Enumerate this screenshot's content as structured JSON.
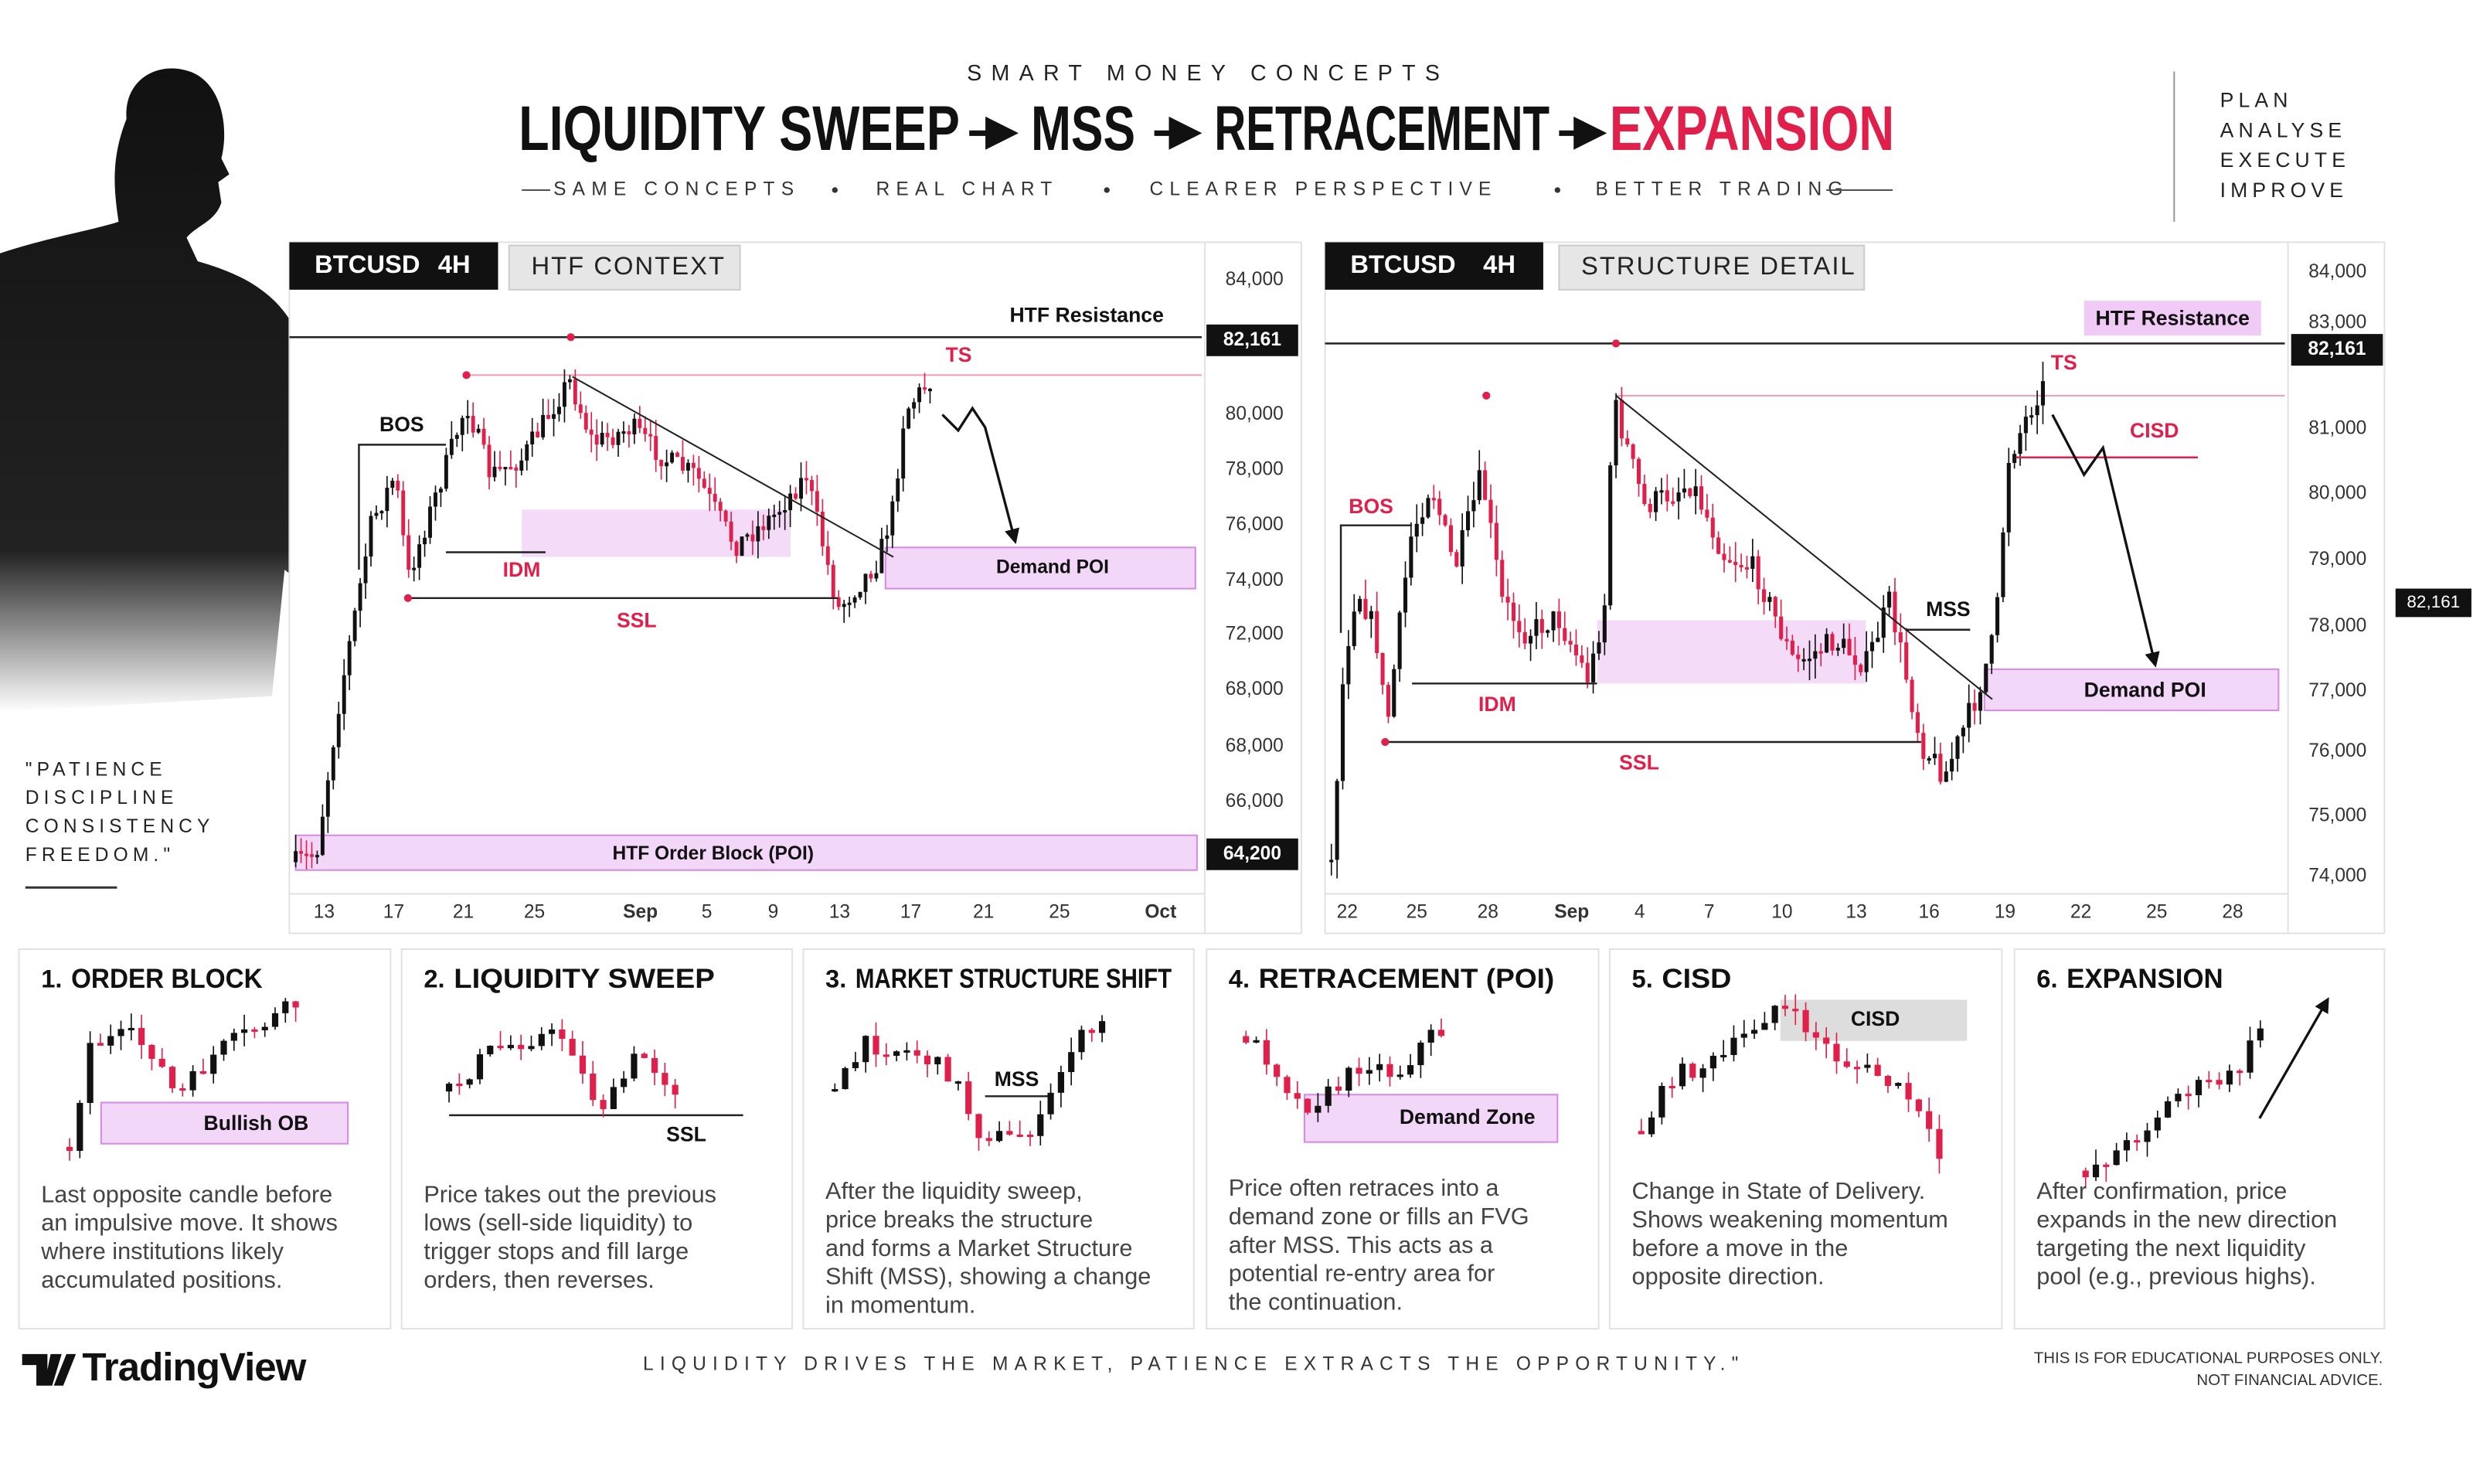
{
  "header": {
    "kicker": "SMART MONEY CONCEPTS",
    "title": [
      "LIQUIDITY SWEEP",
      "MSS",
      "RETRACEMENT",
      "EXPANSION"
    ],
    "tagline": [
      "SAME CONCEPTS",
      "REAL CHART",
      "CLEARER PERSPECTIVE",
      "BETTER TRADING"
    ],
    "side_list": [
      "PLAN",
      "ANALYSE",
      "EXECUTE",
      "IMPROVE"
    ]
  },
  "quote": [
    "\"PATIENCE",
    "DISCIPLINE",
    "CONSISTENCY",
    "FREEDOM.\""
  ],
  "panels": [
    {
      "symbol": "BTCUSD",
      "timeframe": "4H",
      "tab": "HTF CONTEXT",
      "yticks": [
        "84,000",
        "80,000",
        "78,000",
        "76,000",
        "74,000",
        "72,000",
        "68,000",
        "68,000",
        "66,000"
      ],
      "price_tags": [
        "82,161",
        "64,200"
      ],
      "xlabels": [
        "13",
        "17",
        "21",
        "25",
        "Sep",
        "5",
        "9",
        "13",
        "17",
        "21",
        "25",
        "Oct"
      ],
      "annotations": [
        "HTF Resistance",
        "BOS",
        "IDM",
        "SSL",
        "TS",
        "Demand POI",
        "HTF Order Block (POI)"
      ]
    },
    {
      "symbol": "BTCUSD",
      "timeframe": "4H",
      "tab": "STRUCTURE DETAIL",
      "yticks": [
        "84,000",
        "83,000",
        "81,000",
        "80,000",
        "79,000",
        "78,000",
        "77,000",
        "76,000",
        "75,000",
        "74,000"
      ],
      "price_tags": [
        "82,161",
        "82,161"
      ],
      "xlabels": [
        "22",
        "25",
        "28",
        "Sep",
        "4",
        "7",
        "10",
        "13",
        "16",
        "19",
        "22",
        "25",
        "28"
      ],
      "annotations": [
        "HTF Resistance",
        "BOS",
        "IDM",
        "SSL",
        "TS",
        "CISD",
        "MSS",
        "Demand POI"
      ]
    }
  ],
  "cards": [
    {
      "number": "1.",
      "title": "ORDER BLOCK",
      "label": "Bullish OB",
      "description": [
        "Last opposite candle before",
        "an impulsive move. It shows",
        "where institutions likely",
        "accumulated positions."
      ]
    },
    {
      "number": "2.",
      "title": "LIQUIDITY SWEEP",
      "label": "SSL",
      "description": [
        "Price takes out the previous",
        "lows (sell-side liquidity) to",
        "trigger stops and fill large",
        "orders, then reverses."
      ]
    },
    {
      "number": "3.",
      "title": "MARKET STRUCTURE SHIFT",
      "label": "MSS",
      "description": [
        "After the liquidity sweep,",
        "price breaks the structure",
        "and forms a Market Structure",
        "Shift (MSS), showing a change",
        "in momentum."
      ]
    },
    {
      "number": "4.",
      "title": "RETRACEMENT (POI)",
      "label": "Demand Zone",
      "description": [
        "Price often retraces into a",
        "demand zone or fills an FVG",
        "after MSS. This acts as a",
        "potential re-entry area for",
        "the continuation."
      ]
    },
    {
      "number": "5.",
      "title": "CISD",
      "label": "CISD",
      "description": [
        "Change in State of Delivery.",
        "Shows weakening momentum",
        "before a move in the",
        "opposite direction."
      ]
    },
    {
      "number": "6.",
      "title": "EXPANSION",
      "description": [
        "After confirmation, price",
        "expands in the new direction",
        "targeting the next liquidity",
        "pool (e.g., previous highs)."
      ]
    }
  ],
  "footer": {
    "brand": "TradingView",
    "slogan": "LIQUIDITY DRIVES THE MARKET, PATIENCE EXTRACTS THE OPPORTUNITY.\"",
    "disclaimer": [
      "THIS IS FOR EDUCATIONAL PURPOSES ONLY.",
      "NOT FINANCIAL ADVICE."
    ]
  }
}
